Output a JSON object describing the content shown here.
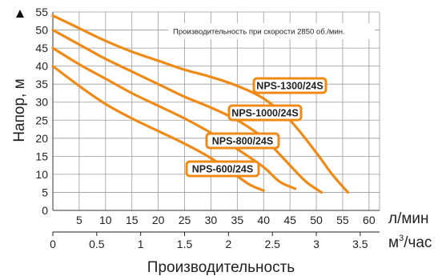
{
  "chart_data": {
    "type": "line",
    "title": "",
    "annotation": "Производительность при скорости 2850 об./мин.",
    "ylabel": "Напор, м",
    "xlabel": "Производительность",
    "x_unit_primary": "л/мин",
    "x_unit_secondary_base": "м",
    "x_unit_secondary_exp": "3",
    "x_unit_secondary_rest": "/час",
    "xlim": [
      0,
      62
    ],
    "ylim": [
      0,
      55
    ],
    "x_ticks": [
      5,
      10,
      15,
      20,
      25,
      30,
      35,
      40,
      45,
      50,
      55,
      60
    ],
    "y_ticks": [
      0,
      5,
      10,
      15,
      20,
      25,
      30,
      35,
      40,
      45,
      50,
      55
    ],
    "x2_ticks": [
      {
        "value": 0,
        "label": "0"
      },
      {
        "value": 0.5,
        "label": "0.5"
      },
      {
        "value": 1,
        "label": "1"
      },
      {
        "value": 1.5,
        "label": "1.5"
      },
      {
        "value": 2,
        "label": "2"
      },
      {
        "value": 2.5,
        "label": "2.5"
      },
      {
        "value": 3,
        "label": "3"
      },
      {
        "value": 3.5,
        "label": "3.5"
      }
    ],
    "grid": true,
    "series_color": "#ef8a17",
    "grid_color": "#9a9a9a",
    "series": [
      {
        "name": "NPS-1300/24S",
        "x": [
          0,
          5,
          10,
          15,
          20,
          25,
          30,
          35,
          40,
          45,
          50,
          53,
          56
        ],
        "y": [
          54,
          50.5,
          47,
          44,
          41.5,
          39,
          37,
          34.5,
          31,
          25,
          16,
          10,
          5
        ]
      },
      {
        "name": "NPS-1000/24S",
        "x": [
          0,
          5,
          10,
          15,
          20,
          25,
          30,
          35,
          40,
          45,
          48,
          51
        ],
        "y": [
          50,
          46,
          42,
          38.5,
          35,
          31.5,
          28.5,
          25,
          20,
          12.5,
          8,
          5
        ]
      },
      {
        "name": "NPS-800/24S",
        "x": [
          0,
          5,
          10,
          15,
          20,
          25,
          30,
          35,
          40,
          43,
          46
        ],
        "y": [
          45,
          40.5,
          36.5,
          32.5,
          29,
          25.5,
          21.5,
          17,
          12,
          8,
          6
        ]
      },
      {
        "name": "NPS-600/24S",
        "x": [
          0,
          5,
          10,
          15,
          20,
          25,
          30,
          35,
          37.5,
          40
        ],
        "y": [
          40,
          34.5,
          29.5,
          25.5,
          22,
          18.5,
          14.5,
          9.5,
          7,
          5.5
        ]
      }
    ]
  }
}
